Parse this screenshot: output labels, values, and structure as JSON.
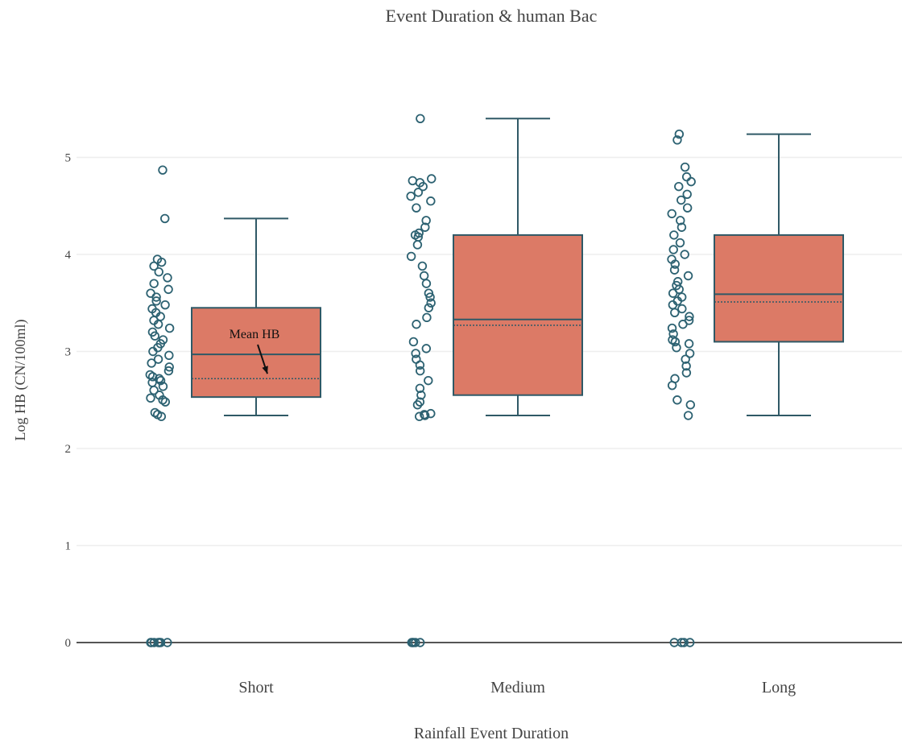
{
  "chart_data": {
    "type": "box",
    "title": "Event Duration & human Bac",
    "xlabel": "Rainfall Event Duration",
    "ylabel": "Log HB (CN/100ml)",
    "ylim": [
      -0.2,
      5.6
    ],
    "yticks": [
      0,
      1,
      2,
      3,
      4,
      5
    ],
    "grid": true,
    "categories": [
      "Short",
      "Medium",
      "Long"
    ],
    "boxes": [
      {
        "category": "Short",
        "min": 2.34,
        "q1": 2.53,
        "median": 2.97,
        "q3": 3.45,
        "max": 4.37,
        "mean": 2.72,
        "points": [
          0,
          0,
          0,
          0,
          0,
          0,
          0,
          0,
          2.33,
          2.35,
          2.37,
          2.48,
          2.5,
          2.52,
          2.55,
          2.6,
          2.64,
          2.68,
          2.7,
          2.72,
          2.74,
          2.76,
          2.8,
          2.84,
          2.88,
          2.92,
          2.96,
          3.0,
          3.04,
          3.08,
          3.12,
          3.16,
          3.2,
          3.24,
          3.28,
          3.32,
          3.36,
          3.4,
          3.44,
          3.48,
          3.52,
          3.56,
          3.6,
          3.64,
          3.7,
          3.76,
          3.82,
          3.88,
          3.92,
          3.95,
          4.37,
          4.87
        ]
      },
      {
        "category": "Medium",
        "min": 2.34,
        "q1": 2.55,
        "median": 3.33,
        "q3": 4.2,
        "max": 5.4,
        "mean": 3.27,
        "points": [
          0,
          0,
          0,
          0,
          0,
          2.33,
          2.34,
          2.35,
          2.36,
          2.45,
          2.48,
          2.55,
          2.62,
          2.7,
          2.8,
          2.86,
          2.92,
          2.98,
          3.03,
          3.1,
          3.28,
          3.35,
          3.45,
          3.5,
          3.56,
          3.6,
          3.7,
          3.78,
          3.88,
          3.98,
          4.1,
          4.18,
          4.2,
          4.22,
          4.28,
          4.35,
          4.48,
          4.55,
          4.6,
          4.64,
          4.7,
          4.74,
          4.76,
          4.78,
          5.4
        ]
      },
      {
        "category": "Long",
        "min": 2.34,
        "q1": 3.1,
        "median": 3.59,
        "q3": 4.2,
        "max": 5.24,
        "mean": 3.51,
        "points": [
          0,
          0,
          0,
          0,
          2.34,
          2.45,
          2.5,
          2.65,
          2.72,
          2.78,
          2.85,
          2.92,
          2.98,
          3.04,
          3.08,
          3.1,
          3.12,
          3.18,
          3.24,
          3.28,
          3.32,
          3.36,
          3.4,
          3.44,
          3.48,
          3.52,
          3.56,
          3.6,
          3.64,
          3.68,
          3.72,
          3.78,
          3.84,
          3.9,
          3.95,
          4.0,
          4.05,
          4.12,
          4.2,
          4.28,
          4.35,
          4.42,
          4.48,
          4.56,
          4.62,
          4.7,
          4.75,
          4.8,
          4.9,
          5.18,
          5.24
        ]
      }
    ],
    "annotation": {
      "text": "Mean HB",
      "category": "Short",
      "y": 2.72
    },
    "colors": {
      "box_fill": "#dc7a66",
      "box_line": "#2f5966",
      "point_stroke": "#2d6272",
      "grid": "#eeeeee",
      "zero_line": "#555555",
      "text": "#444444"
    }
  }
}
